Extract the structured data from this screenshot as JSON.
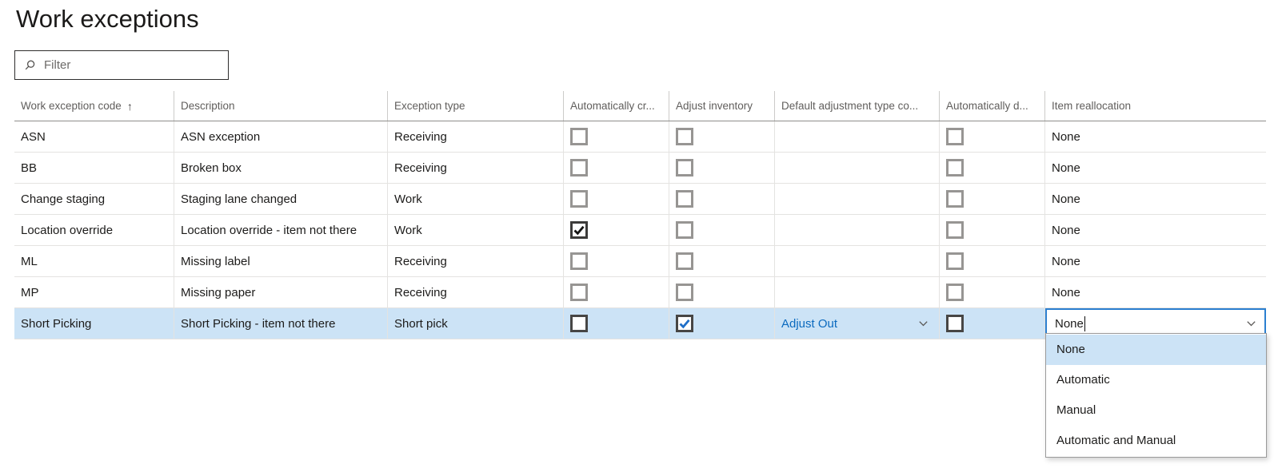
{
  "page": {
    "title": "Work exceptions"
  },
  "filter": {
    "placeholder": "Filter",
    "value": ""
  },
  "grid": {
    "columns": [
      {
        "label": "Work exception code",
        "sort_indicator": "↑"
      },
      {
        "label": "Description"
      },
      {
        "label": "Exception type"
      },
      {
        "label": "Automatically cr..."
      },
      {
        "label": "Adjust inventory"
      },
      {
        "label": "Default adjustment type co..."
      },
      {
        "label": "Automatically d..."
      },
      {
        "label": "Item reallocation"
      }
    ],
    "rows": [
      {
        "code": "ASN",
        "description": "ASN exception",
        "exception_type": "Receiving",
        "automatically_cr": false,
        "adjust_inventory": false,
        "default_adjustment_type": "",
        "automatically_d": false,
        "item_reallocation": "None",
        "selected": false
      },
      {
        "code": "BB",
        "description": "Broken box",
        "exception_type": "Receiving",
        "automatically_cr": false,
        "adjust_inventory": false,
        "default_adjustment_type": "",
        "automatically_d": false,
        "item_reallocation": "None",
        "selected": false
      },
      {
        "code": "Change staging",
        "description": "Staging lane changed",
        "exception_type": "Work",
        "automatically_cr": false,
        "adjust_inventory": false,
        "default_adjustment_type": "",
        "automatically_d": false,
        "item_reallocation": "None",
        "selected": false
      },
      {
        "code": "Location override",
        "description": "Location override - item not there",
        "exception_type": "Work",
        "automatically_cr": true,
        "adjust_inventory": false,
        "default_adjustment_type": "",
        "automatically_d": false,
        "item_reallocation": "None",
        "selected": false
      },
      {
        "code": "ML",
        "description": "Missing label",
        "exception_type": "Receiving",
        "automatically_cr": false,
        "adjust_inventory": false,
        "default_adjustment_type": "",
        "automatically_d": false,
        "item_reallocation": "None",
        "selected": false
      },
      {
        "code": "MP",
        "description": "Missing paper",
        "exception_type": "Receiving",
        "automatically_cr": false,
        "adjust_inventory": false,
        "default_adjustment_type": "",
        "automatically_d": false,
        "item_reallocation": "None",
        "selected": false
      },
      {
        "code": "Short Picking",
        "description": "Short Picking - item not there",
        "exception_type": "Short pick",
        "automatically_cr": false,
        "adjust_inventory": true,
        "default_adjustment_type": "Adjust Out",
        "automatically_d": false,
        "item_reallocation": "None",
        "selected": true
      }
    ]
  },
  "combobox": {
    "field": "Item reallocation",
    "value": "None"
  },
  "dropdown": {
    "options": [
      {
        "label": "None",
        "highlighted": true
      },
      {
        "label": "Automatic",
        "highlighted": false
      },
      {
        "label": "Manual",
        "highlighted": false
      },
      {
        "label": "Automatic and Manual",
        "highlighted": false
      }
    ]
  },
  "colors": {
    "selection_blue": "#cce3f6",
    "accent_blue": "#2b7fd0",
    "link_blue": "#0b6abf",
    "check_blue": "#1f6fc8",
    "header_text": "#605e5c",
    "cell_text": "#1c1b1a"
  }
}
